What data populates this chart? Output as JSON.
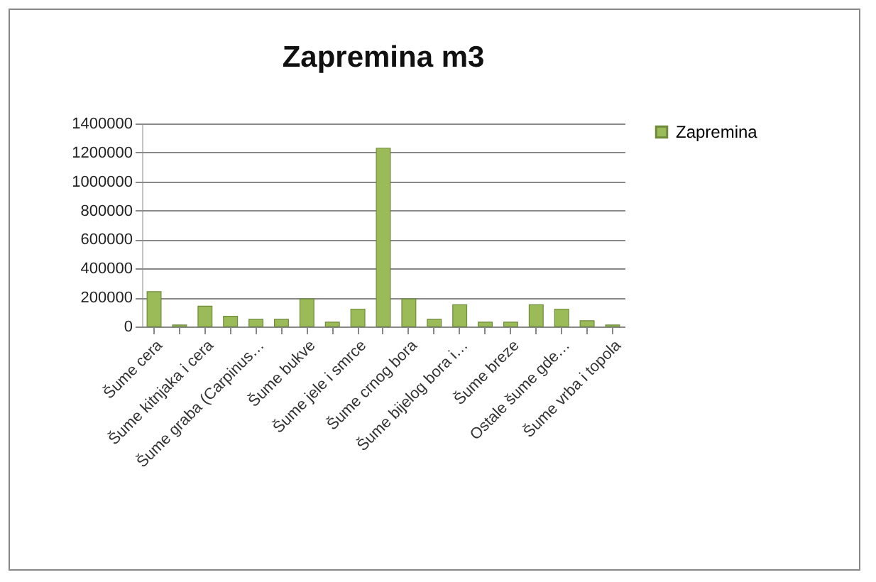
{
  "chart_data": {
    "type": "bar",
    "title": "Zapremina m3",
    "categories": [
      "Šume cera",
      null,
      "Šume kitnjaka i cera",
      null,
      "Šume graba (Carpinus…",
      null,
      "Šume bukve",
      null,
      "Šume jele i smrce",
      null,
      "Šume crnog bora",
      null,
      "Šume bijelog bora i…",
      null,
      "Šume breze",
      null,
      "Ostale šume gde…",
      null,
      "Šume vrba i topola"
    ],
    "series": [
      {
        "name": "Zapremina",
        "color": "#9bbb59",
        "values": [
          240000,
          10000,
          140000,
          70000,
          50000,
          50000,
          190000,
          30000,
          120000,
          1230000,
          190000,
          50000,
          150000,
          30000,
          30000,
          150000,
          120000,
          40000,
          10000
        ]
      }
    ],
    "ylim": [
      0,
      1400000
    ],
    "yticks": [
      0,
      200000,
      400000,
      600000,
      800000,
      1000000,
      1200000,
      1400000
    ],
    "grid": "y",
    "legend": "right"
  }
}
